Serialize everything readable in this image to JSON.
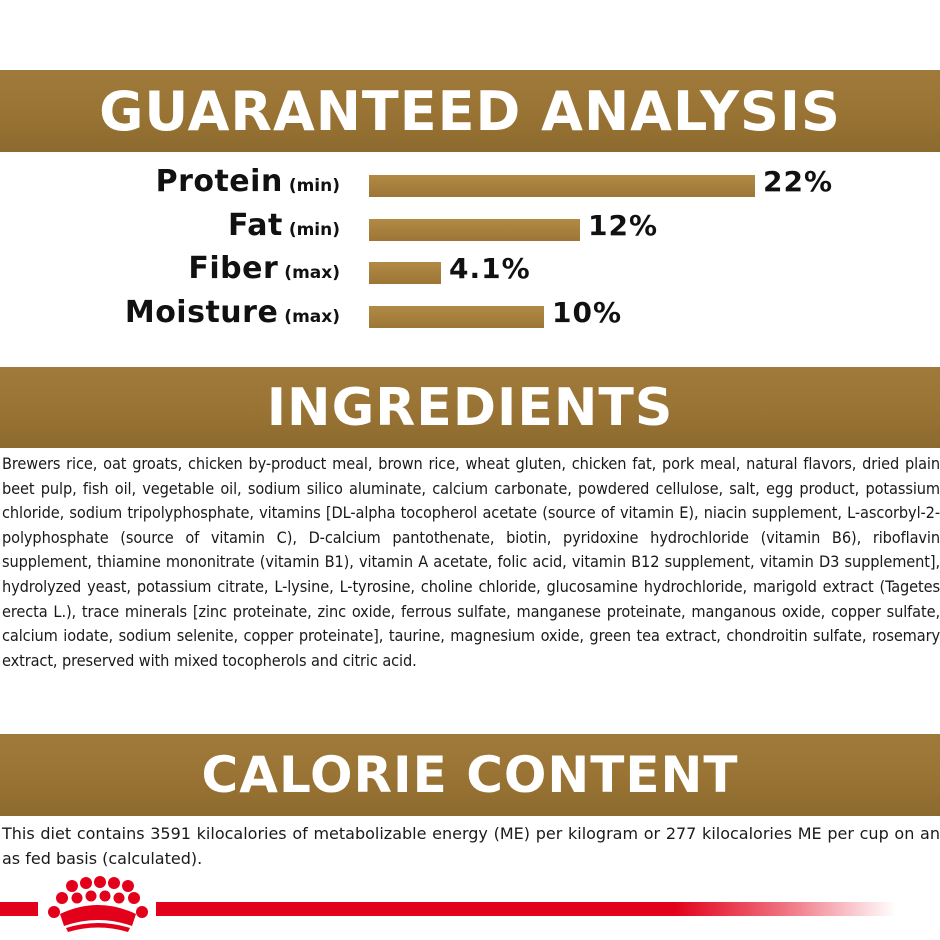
{
  "sections": {
    "guaranteed_analysis_title": "GUARANTEED ANALYSIS",
    "ingredients_title": "INGREDIENTS",
    "calorie_title": "CALORIE CONTENT"
  },
  "analysis": [
    {
      "name": "Protein",
      "qualifier": "(min)",
      "value": "22%",
      "percent": 22
    },
    {
      "name": "Fat",
      "qualifier": "(min)",
      "value": "12%",
      "percent": 12
    },
    {
      "name": "Fiber",
      "qualifier": "(max)",
      "value": "4.1%",
      "percent": 4.1
    },
    {
      "name": "Moisture",
      "qualifier": "(max)",
      "value": "10%",
      "percent": 10
    }
  ],
  "ingredients_text": "Brewers rice, oat groats, chicken by-product meal, brown rice, wheat gluten, chicken fat, pork meal, natural flavors, dried plain beet pulp, fish oil, vegetable oil, sodium silico aluminate, calcium carbonate, powdered cellulose, salt, egg product, potassium chloride, sodium tripolyphosphate, vitamins [DL-alpha tocopherol acetate (source of vitamin E), niacin supplement, L-ascorbyl-2-polyphosphate (source of vitamin C), D-calcium pantothenate, biotin, pyridoxine hydrochloride (vitamin B6), riboflavin supplement, thiamine mononitrate (vitamin B1), vitamin A acetate, folic acid, vitamin B12 supplement, vitamin D3 supplement], hydrolyzed yeast, potassium citrate, L-lysine, L-tyrosine, choline chloride, glucosamine hydrochloride, marigold extract (Tagetes erecta L.), trace minerals [zinc proteinate, zinc oxide, ferrous sulfate, manganese proteinate, manganous oxide, copper sulfate, calcium iodate, sodium selenite, copper proteinate], taurine, magnesium oxide, green tea extract, chondroitin sulfate, rosemary extract, preserved with mixed tocopherols and citric acid.",
  "calorie_text": "This diet contains 3591 kilocalories of metabolizable energy (ME) per kilogram or 277 kilocalories ME per cup on an as fed basis (calculated).",
  "colors": {
    "gold": "#9d7637",
    "red": "#e2001a"
  },
  "icons": {
    "brand_logo": "crown-logo"
  }
}
